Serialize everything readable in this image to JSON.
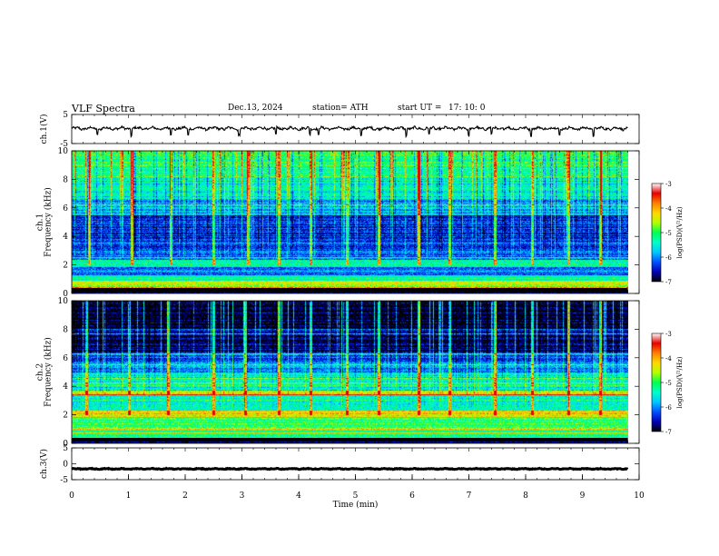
{
  "header": {
    "title": "VLF  Spectra",
    "date": "Dec.13, 2024",
    "station": "station= ATH",
    "start_label": "start  UT  =",
    "start_time": "17: 10: 0"
  },
  "colors": {
    "spectrum": [
      "#000000",
      "#0000b4",
      "#0050ff",
      "#00c8ff",
      "#00ffc8",
      "#00ff50",
      "#b4ff00",
      "#ffd700",
      "#ff7f00",
      "#e60000",
      "#ffffff"
    ],
    "waveform": "#000000"
  },
  "chart_data": [
    {
      "type": "line",
      "name": "ch1-waveform",
      "ylabel": "ch.1(V)",
      "ylim": [
        -5,
        5
      ],
      "yticks": [
        "5",
        "-5"
      ],
      "xlim": [
        0,
        10
      ],
      "x_end": 9.8,
      "baseline": 0.2,
      "amplitude": 0.6,
      "spike_times": [
        0.45,
        1.05,
        1.75,
        2.05,
        2.95,
        3.6,
        4.2,
        4.35,
        5.1,
        5.9,
        6.3,
        7.0,
        7.4,
        8.1,
        8.6,
        9.2
      ]
    },
    {
      "type": "heatmap",
      "name": "ch1-spectrogram",
      "ylabel": "ch.1\nFrequency (kHz)",
      "ylim": [
        0,
        10
      ],
      "yticks": [
        "0",
        "2",
        "4",
        "6",
        "8",
        "10"
      ],
      "xlim": [
        0,
        10
      ],
      "x_end": 9.8,
      "colorbar_label": "log(PSD)(V²/Hz)",
      "colorbar_ticks": [
        "-3",
        "-4",
        "-5",
        "-6",
        "-7"
      ],
      "bands": [
        {
          "f": [
            0.0,
            0.3
          ],
          "level": -6.8
        },
        {
          "f": [
            0.3,
            0.9
          ],
          "level": -4.4
        },
        {
          "f": [
            0.9,
            1.3
          ],
          "level": -5.0
        },
        {
          "f": [
            1.3,
            1.9
          ],
          "level": -5.9
        },
        {
          "f": [
            1.9,
            2.4
          ],
          "level": -5.1
        },
        {
          "f": [
            2.4,
            3.6
          ],
          "level": -6.1
        },
        {
          "f": [
            3.6,
            5.5
          ],
          "level": -6.4
        },
        {
          "f": [
            5.5,
            6.6
          ],
          "level": -5.7
        },
        {
          "f": [
            6.6,
            8.2
          ],
          "level": -5.3
        },
        {
          "f": [
            8.2,
            10.0
          ],
          "level": -4.8
        }
      ],
      "whistler_times": [
        0.3,
        1.05,
        1.75,
        2.5,
        3.1,
        3.65,
        4.2,
        4.85,
        5.4,
        6.1,
        6.65,
        7.45,
        8.1,
        8.75,
        9.3
      ]
    },
    {
      "type": "heatmap",
      "name": "ch2-spectrogram",
      "ylabel": "ch.2\nFrequency (kHz)",
      "ylim": [
        0,
        10
      ],
      "yticks": [
        "0",
        "2",
        "4",
        "6",
        "8",
        "10"
      ],
      "xlim": [
        0,
        10
      ],
      "x_end": 9.8,
      "colorbar_label": "log(PSD)(V²/Hz)",
      "colorbar_ticks": [
        "-3",
        "-4",
        "-5",
        "-6",
        "-7"
      ],
      "bands": [
        {
          "f": [
            0.0,
            0.3
          ],
          "level": -6.8
        },
        {
          "f": [
            0.3,
            1.3
          ],
          "level": -5.0
        },
        {
          "f": [
            1.3,
            1.9
          ],
          "level": -4.8
        },
        {
          "f": [
            1.9,
            2.3
          ],
          "level": -3.9
        },
        {
          "f": [
            2.3,
            3.4
          ],
          "level": -5.1
        },
        {
          "f": [
            3.4,
            3.7
          ],
          "level": -4.1
        },
        {
          "f": [
            3.7,
            5.0
          ],
          "level": -5.3
        },
        {
          "f": [
            5.0,
            6.4
          ],
          "level": -6.0
        },
        {
          "f": [
            6.4,
            8.0
          ],
          "level": -6.7
        },
        {
          "f": [
            8.0,
            10.0
          ],
          "level": -6.9
        }
      ],
      "whistler_times": [
        0.25,
        1.0,
        1.7,
        2.5,
        3.05,
        3.65,
        4.2,
        4.85,
        5.4,
        6.1,
        6.65,
        7.45,
        8.1,
        8.75,
        9.3
      ]
    },
    {
      "type": "line",
      "name": "ch3-waveform",
      "ylabel": "ch.3(V)",
      "ylim": [
        -5,
        5
      ],
      "yticks": [
        "5",
        "0",
        "-5"
      ],
      "xlim": [
        0,
        10
      ],
      "x_end": 9.8,
      "baseline": -1.6,
      "amplitude": 0.15,
      "spike_times": []
    }
  ],
  "xaxis": {
    "label": "Time  (min)",
    "ticks": [
      "0",
      "1",
      "2",
      "3",
      "4",
      "5",
      "6",
      "7",
      "8",
      "9",
      "10"
    ]
  }
}
